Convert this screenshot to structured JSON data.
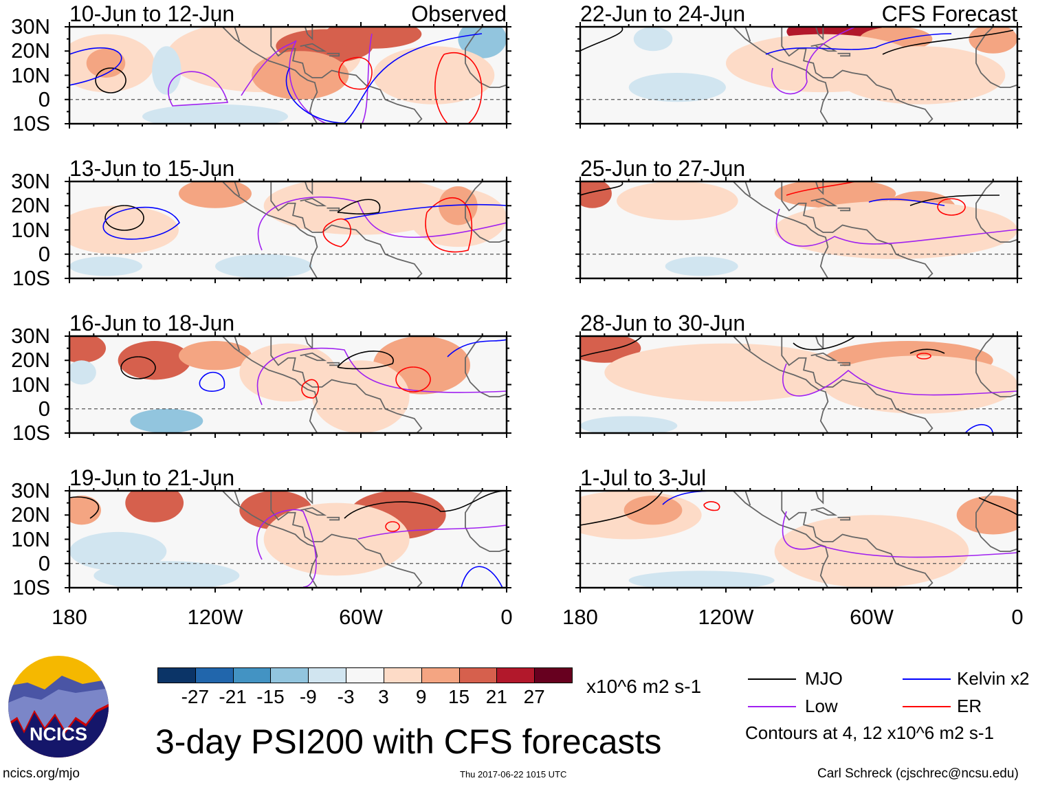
{
  "title": "3-day PSI200 with CFS forecasts",
  "observed_label": "Observed",
  "forecast_label": "CFS Forecast",
  "left_panels": [
    "10-Jun to 12-Jun",
    "13-Jun to 15-Jun",
    "16-Jun to 18-Jun",
    "19-Jun to 21-Jun"
  ],
  "right_panels": [
    "22-Jun to 24-Jun",
    "25-Jun to 27-Jun",
    "28-Jun to 30-Jun",
    "1-Jul to 3-Jul"
  ],
  "lat_labels": [
    "30N",
    "20N",
    "10N",
    "0",
    "10S"
  ],
  "lon_labels": [
    "180",
    "120W",
    "60W",
    "0"
  ],
  "colorbar": {
    "colors": [
      "#0b3467",
      "#2166ac",
      "#4393c3",
      "#92c5de",
      "#d1e5f0",
      "#f7f7f7",
      "#fddbc7",
      "#f4a582",
      "#d6604d",
      "#b2182b",
      "#67001f"
    ],
    "labels": [
      "-27",
      "-21",
      "-15",
      "-9",
      "-3",
      "3",
      "9",
      "15",
      "21",
      "27"
    ],
    "units": "x10^6 m2 s-1"
  },
  "legend": {
    "items": [
      {
        "label": "MJO",
        "color": "#000000"
      },
      {
        "label": "Kelvin x2",
        "color": "#0000ff"
      },
      {
        "label": "Low",
        "color": "#a020f0"
      },
      {
        "label": "ER",
        "color": "#ff0000"
      }
    ],
    "contours_note": "Contours at 4, 12 x10^6 m2 s-1"
  },
  "logo_text": "NCICS",
  "footer": {
    "url": "ncics.org/mjo",
    "timestamp": "Thu 2017-06-22 1015 UTC",
    "credit": "Carl Schreck (cjschrec@ncsu.edu)"
  }
}
